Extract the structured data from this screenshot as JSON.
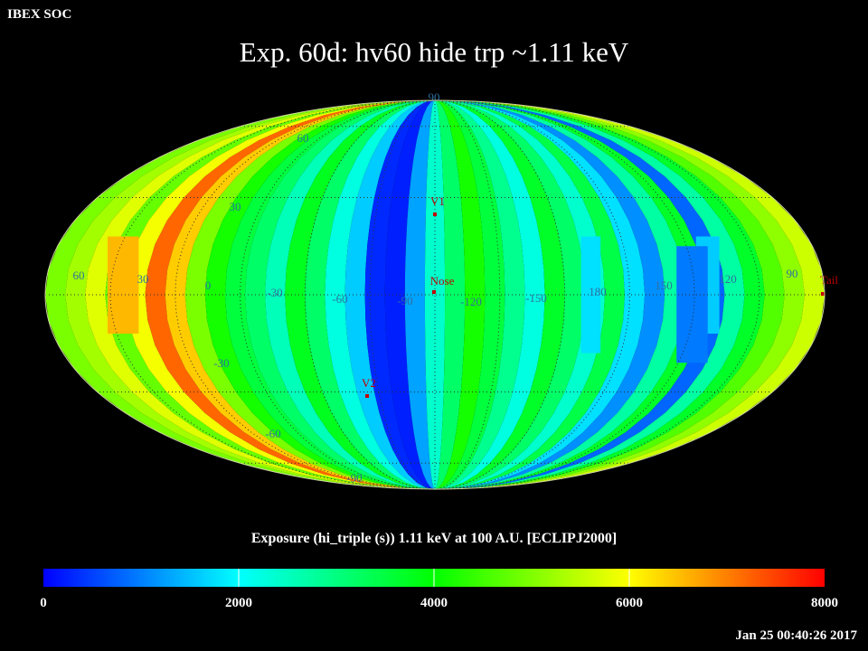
{
  "header": {
    "org": "IBEX SOC",
    "title": "Exp.   60d: hv60 hide trp ~1.11 keV"
  },
  "map": {
    "projection": "Mollweide, ecliptic J2000",
    "lon_labels": [
      "60",
      "30",
      "0",
      "-30",
      "-60",
      "-90",
      "-120",
      "-150",
      "180",
      "150",
      "120",
      "90"
    ],
    "lat_labels": [
      "90",
      "60",
      "30",
      "-30",
      "-60",
      "-90"
    ],
    "markers": [
      {
        "name": "V1",
        "color": "#c00000"
      },
      {
        "name": "Nose",
        "color": "#c00000"
      },
      {
        "name": "V2",
        "color": "#c00000"
      },
      {
        "name": "Tail",
        "color": "#c00000"
      }
    ],
    "grid": true,
    "grid_color": "#303030",
    "label_color": "#2f6fa0"
  },
  "colorbar": {
    "title": "Exposure (hi_triple (s))  1.11 keV at 100 A.U. [ECLIPJ2000]",
    "range": [
      0,
      8000
    ],
    "ticks": [
      "0",
      "2000",
      "4000",
      "6000",
      "8000"
    ],
    "colors": [
      "#0000ff",
      "#00ffff",
      "#00ff00",
      "#ffff00",
      "#ff0000"
    ]
  },
  "footer": {
    "timestamp": "Jan 25 00:40:26 2017"
  }
}
